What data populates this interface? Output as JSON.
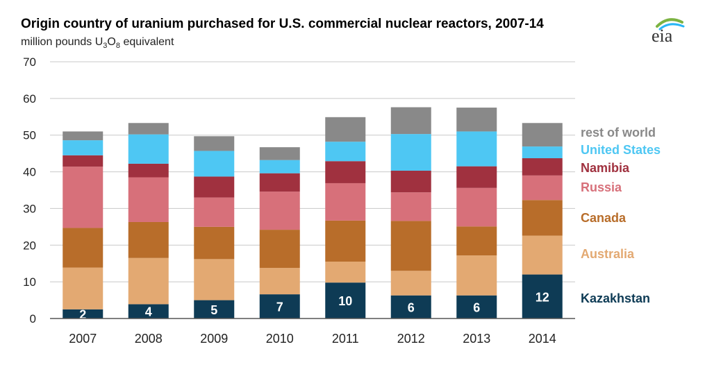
{
  "title": "Origin country of uranium purchased for U.S. commercial nuclear reactors, 2007-14",
  "subtitle": {
    "prefix": "million pounds ",
    "unit_base": "U",
    "unit_sub1": "3",
    "unit_mid": "O",
    "unit_sub2": "8",
    "suffix": " equivalent"
  },
  "logo": {
    "text": "eia",
    "icon": "eia-logo"
  },
  "colors": {
    "Kazakhstan": "#0e3b55",
    "Australia": "#e3a972",
    "Canada": "#b86d2a",
    "Russia": "#d7707a",
    "Namibia": "#a0313f",
    "United States": "#4ec7f3",
    "rest of world": "#898989",
    "grid": "#c8c8c8",
    "axis": "#555555"
  },
  "chart_data": {
    "type": "bar",
    "stacked": true,
    "categories": [
      "2007",
      "2008",
      "2009",
      "2010",
      "2011",
      "2012",
      "2013",
      "2014"
    ],
    "ylim": [
      0,
      70
    ],
    "yticks": [
      0,
      10,
      20,
      30,
      40,
      50,
      60,
      70
    ],
    "grid": true,
    "legend_placement": "right",
    "series": [
      {
        "name": "Kazakhstan",
        "values": [
          2.5,
          3.9,
          5.0,
          6.6,
          9.8,
          6.3,
          6.3,
          12.0
        ],
        "labels": [
          "2",
          "4",
          "5",
          "7",
          "10",
          "6",
          "6",
          "12"
        ]
      },
      {
        "name": "Australia",
        "values": [
          11.4,
          12.6,
          11.2,
          7.2,
          5.7,
          6.7,
          10.9,
          10.6
        ]
      },
      {
        "name": "Canada",
        "values": [
          10.8,
          9.8,
          8.8,
          10.4,
          11.2,
          13.6,
          7.9,
          9.7
        ]
      },
      {
        "name": "Russia",
        "values": [
          16.7,
          12.2,
          8.0,
          10.4,
          10.2,
          7.8,
          10.5,
          6.7
        ]
      },
      {
        "name": "Namibia",
        "values": [
          3.1,
          3.7,
          5.7,
          5.0,
          6.0,
          5.9,
          5.9,
          4.7
        ]
      },
      {
        "name": "United States",
        "values": [
          4.1,
          8.0,
          7.0,
          3.6,
          5.3,
          10.0,
          9.5,
          3.2
        ]
      },
      {
        "name": "rest of world",
        "values": [
          2.4,
          3.1,
          4.0,
          3.5,
          6.7,
          7.3,
          6.5,
          6.4
        ]
      }
    ]
  }
}
